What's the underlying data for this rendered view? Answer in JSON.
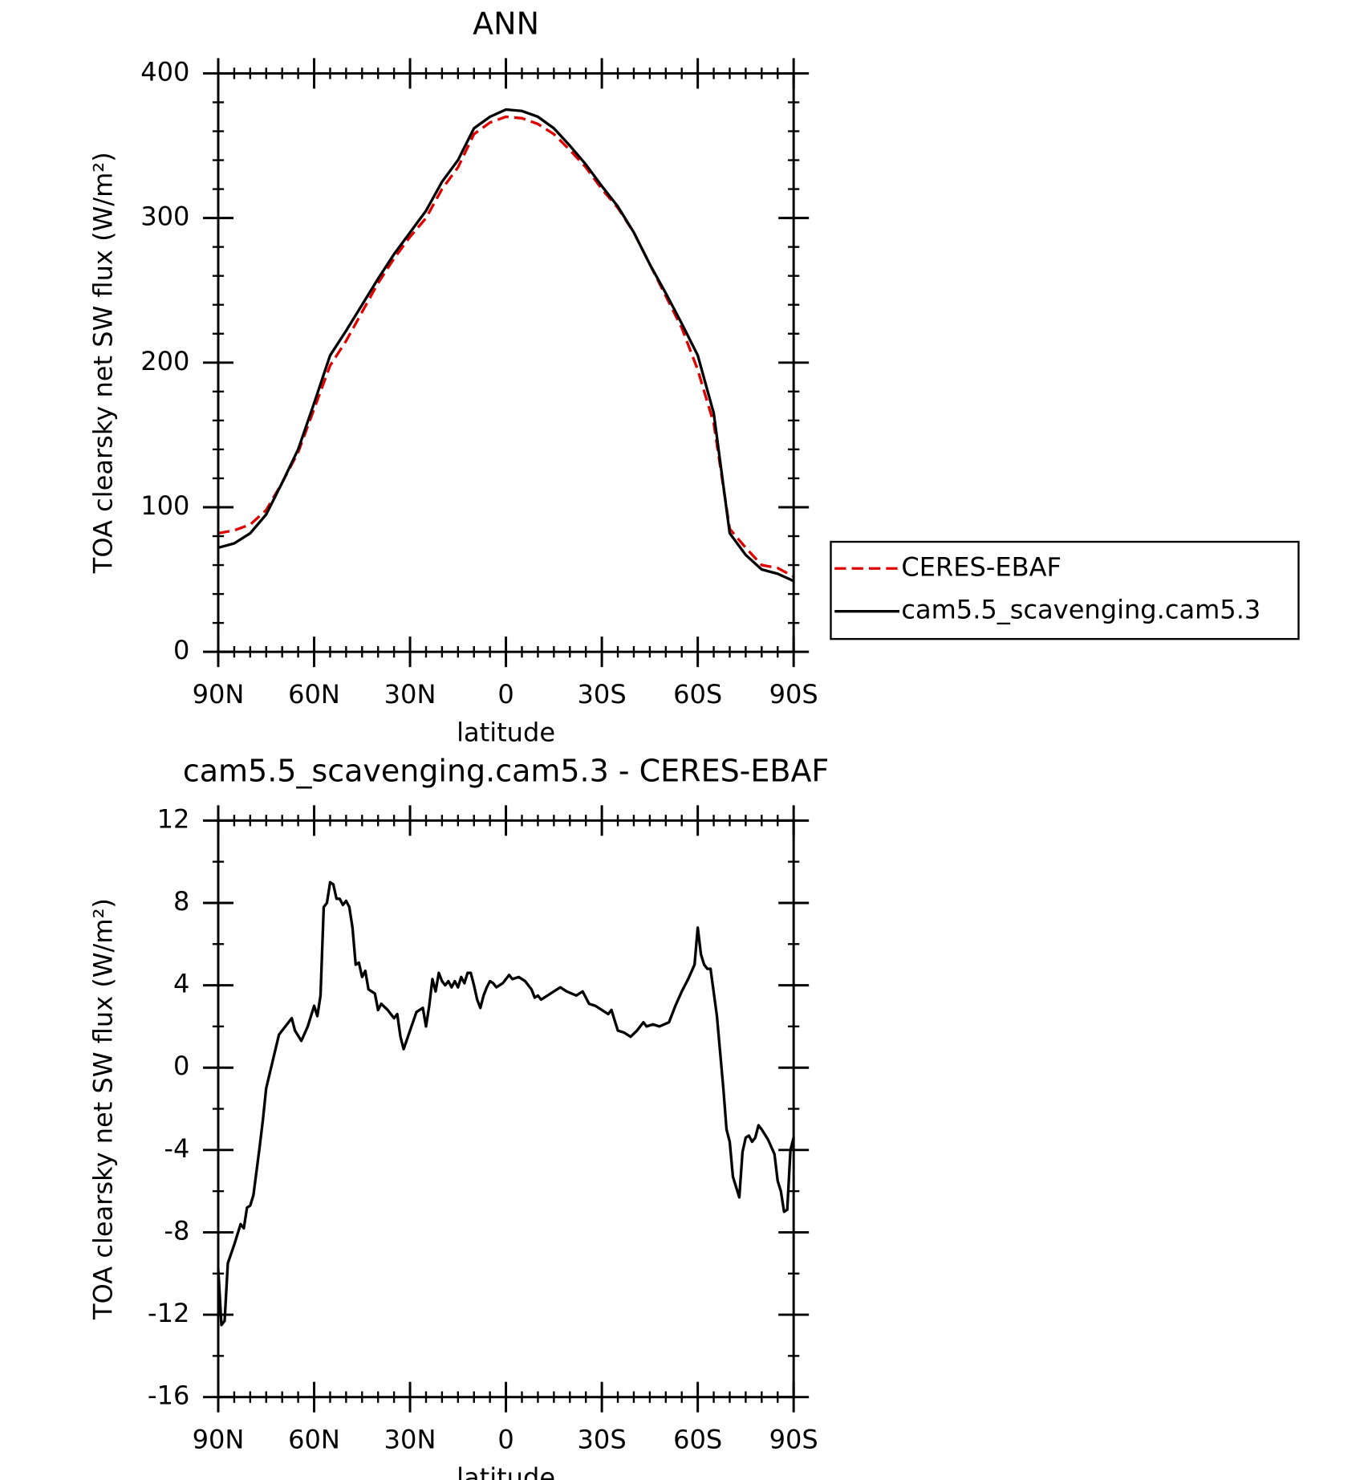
{
  "chart_data": [
    {
      "type": "line",
      "title": "ANN",
      "xlabel": "latitude",
      "ylabel": "TOA clearsky net SW flux (W/m²)",
      "xlim": [
        90,
        -90
      ],
      "ylim": [
        0,
        400
      ],
      "xticks": [
        {
          "value": 90,
          "label": "90N"
        },
        {
          "value": 60,
          "label": "60N"
        },
        {
          "value": 30,
          "label": "30N"
        },
        0,
        {
          "value": -30,
          "label": "30S"
        },
        {
          "value": -60,
          "label": "60S"
        },
        {
          "value": -90,
          "label": "90S"
        }
      ],
      "yticks": [
        0,
        100,
        200,
        300,
        400
      ],
      "legend": "right",
      "x": [
        90,
        85,
        80,
        75,
        70,
        65,
        60,
        55,
        50,
        45,
        40,
        35,
        30,
        25,
        20,
        15,
        10,
        5,
        0,
        -5,
        -10,
        -15,
        -20,
        -25,
        -30,
        -35,
        -40,
        -45,
        -50,
        -55,
        -60,
        -65,
        -70,
        -75,
        -80,
        -85,
        -90
      ],
      "series": [
        {
          "name": "CERES-EBAF",
          "color": "#e00000",
          "dash": true,
          "values": [
            82,
            84,
            88,
            98,
            117,
            138,
            168,
            198,
            215,
            235,
            255,
            272,
            287,
            300,
            320,
            335,
            358,
            366,
            370,
            369,
            365,
            358,
            347,
            335,
            320,
            307,
            290,
            268,
            246,
            224,
            195,
            158,
            85,
            72,
            60,
            58,
            52
          ]
        },
        {
          "name": "cam5.5_scavenging.cam5.3",
          "color": "#000000",
          "dash": false,
          "values": [
            72,
            75,
            82,
            95,
            117,
            140,
            172,
            205,
            222,
            240,
            258,
            275,
            290,
            305,
            325,
            340,
            362,
            370,
            375,
            374,
            370,
            362,
            350,
            337,
            322,
            308,
            290,
            268,
            248,
            227,
            205,
            165,
            82,
            67,
            57,
            54,
            49
          ]
        }
      ]
    },
    {
      "type": "line",
      "title": "cam5.5_scavenging.cam5.3 - CERES-EBAF",
      "xlabel": "latitude",
      "ylabel": "TOA clearsky net SW flux (W/m²)",
      "xlim": [
        90,
        -90
      ],
      "ylim": [
        -16,
        12
      ],
      "xticks": [
        {
          "value": 90,
          "label": "90N"
        },
        {
          "value": 60,
          "label": "60N"
        },
        {
          "value": 30,
          "label": "30N"
        },
        0,
        {
          "value": -30,
          "label": "30S"
        },
        {
          "value": -60,
          "label": "60S"
        },
        {
          "value": -90,
          "label": "90S"
        }
      ],
      "yticks": [
        -16,
        -12,
        -8,
        -4,
        0,
        4,
        8,
        12
      ],
      "x": [
        90,
        89,
        88,
        87,
        85,
        83,
        82,
        81,
        80,
        79,
        77,
        76,
        75,
        73,
        71,
        69,
        67,
        66,
        64,
        62,
        60,
        59,
        58,
        57,
        56,
        55,
        54,
        53,
        52,
        51,
        50,
        49,
        48,
        47,
        46,
        45,
        44,
        43,
        41,
        40,
        39,
        37,
        35,
        34,
        33,
        32,
        30,
        28,
        26,
        25,
        24,
        23,
        22,
        21,
        20,
        19,
        18,
        17,
        16,
        15,
        14,
        13,
        12,
        11,
        10,
        9,
        8,
        7,
        6,
        5,
        4,
        3,
        1,
        0,
        -1,
        -2,
        -4,
        -6,
        -8,
        -9,
        -10,
        -11,
        -13,
        -15,
        -17,
        -19,
        -22,
        -24,
        -26,
        -28,
        -30,
        -32,
        -33,
        -34,
        -35,
        -37,
        -39,
        -41,
        -43,
        -44,
        -46,
        -48,
        -51,
        -53,
        -55,
        -57,
        -59,
        -60,
        -61,
        -62,
        -63,
        -64,
        -66,
        -68,
        -69,
        -70,
        -71,
        -73,
        -74,
        -75,
        -76,
        -77,
        -78,
        -79,
        -80,
        -82,
        -84,
        -85,
        -86,
        -87,
        -88,
        -89,
        -90
      ],
      "series": [
        {
          "color": "#000000",
          "dash": false,
          "values": [
            -9.8,
            -12.5,
            -12.3,
            -9.5,
            -8.6,
            -7.6,
            -7.8,
            -6.8,
            -6.7,
            -6.2,
            -3.8,
            -2.5,
            -1,
            0.3,
            1.6,
            2.0,
            2.4,
            1.8,
            1.3,
            2.0,
            3.0,
            2.5,
            3.5,
            7.8,
            8.0,
            9.0,
            8.9,
            8.2,
            8.2,
            7.9,
            8.1,
            7.8,
            6.8,
            5.0,
            5.1,
            4.4,
            4.7,
            3.8,
            3.6,
            2.8,
            3.1,
            2.8,
            2.4,
            2.6,
            1.5,
            0.9,
            1.8,
            2.7,
            2.9,
            2.0,
            3.0,
            4.3,
            3.7,
            4.6,
            4.2,
            4.0,
            4.2,
            3.9,
            4.2,
            3.9,
            4.4,
            4.1,
            4.6,
            4.6,
            4.0,
            3.3,
            2.9,
            3.5,
            3.9,
            4.2,
            4.1,
            3.9,
            4.1,
            4.3,
            4.5,
            4.3,
            4.4,
            4.2,
            3.8,
            3.4,
            3.5,
            3.3,
            3.5,
            3.7,
            3.9,
            3.7,
            3.5,
            3.7,
            3.1,
            3.0,
            2.8,
            2.6,
            2.8,
            2.3,
            1.8,
            1.7,
            1.5,
            1.8,
            2.2,
            2.0,
            2.1,
            2.0,
            2.2,
            3.0,
            3.7,
            4.3,
            5.0,
            6.8,
            5.5,
            5.0,
            4.8,
            4.8,
            2.5,
            -1.0,
            -3.0,
            -3.6,
            -5.3,
            -6.3,
            -4.1,
            -3.4,
            -3.3,
            -3.6,
            -3.4,
            -2.8,
            -3.0,
            -3.5,
            -4.2,
            -5.5,
            -6.0,
            -7.0,
            -6.9,
            -4.0,
            -3.4
          ]
        }
      ]
    }
  ]
}
